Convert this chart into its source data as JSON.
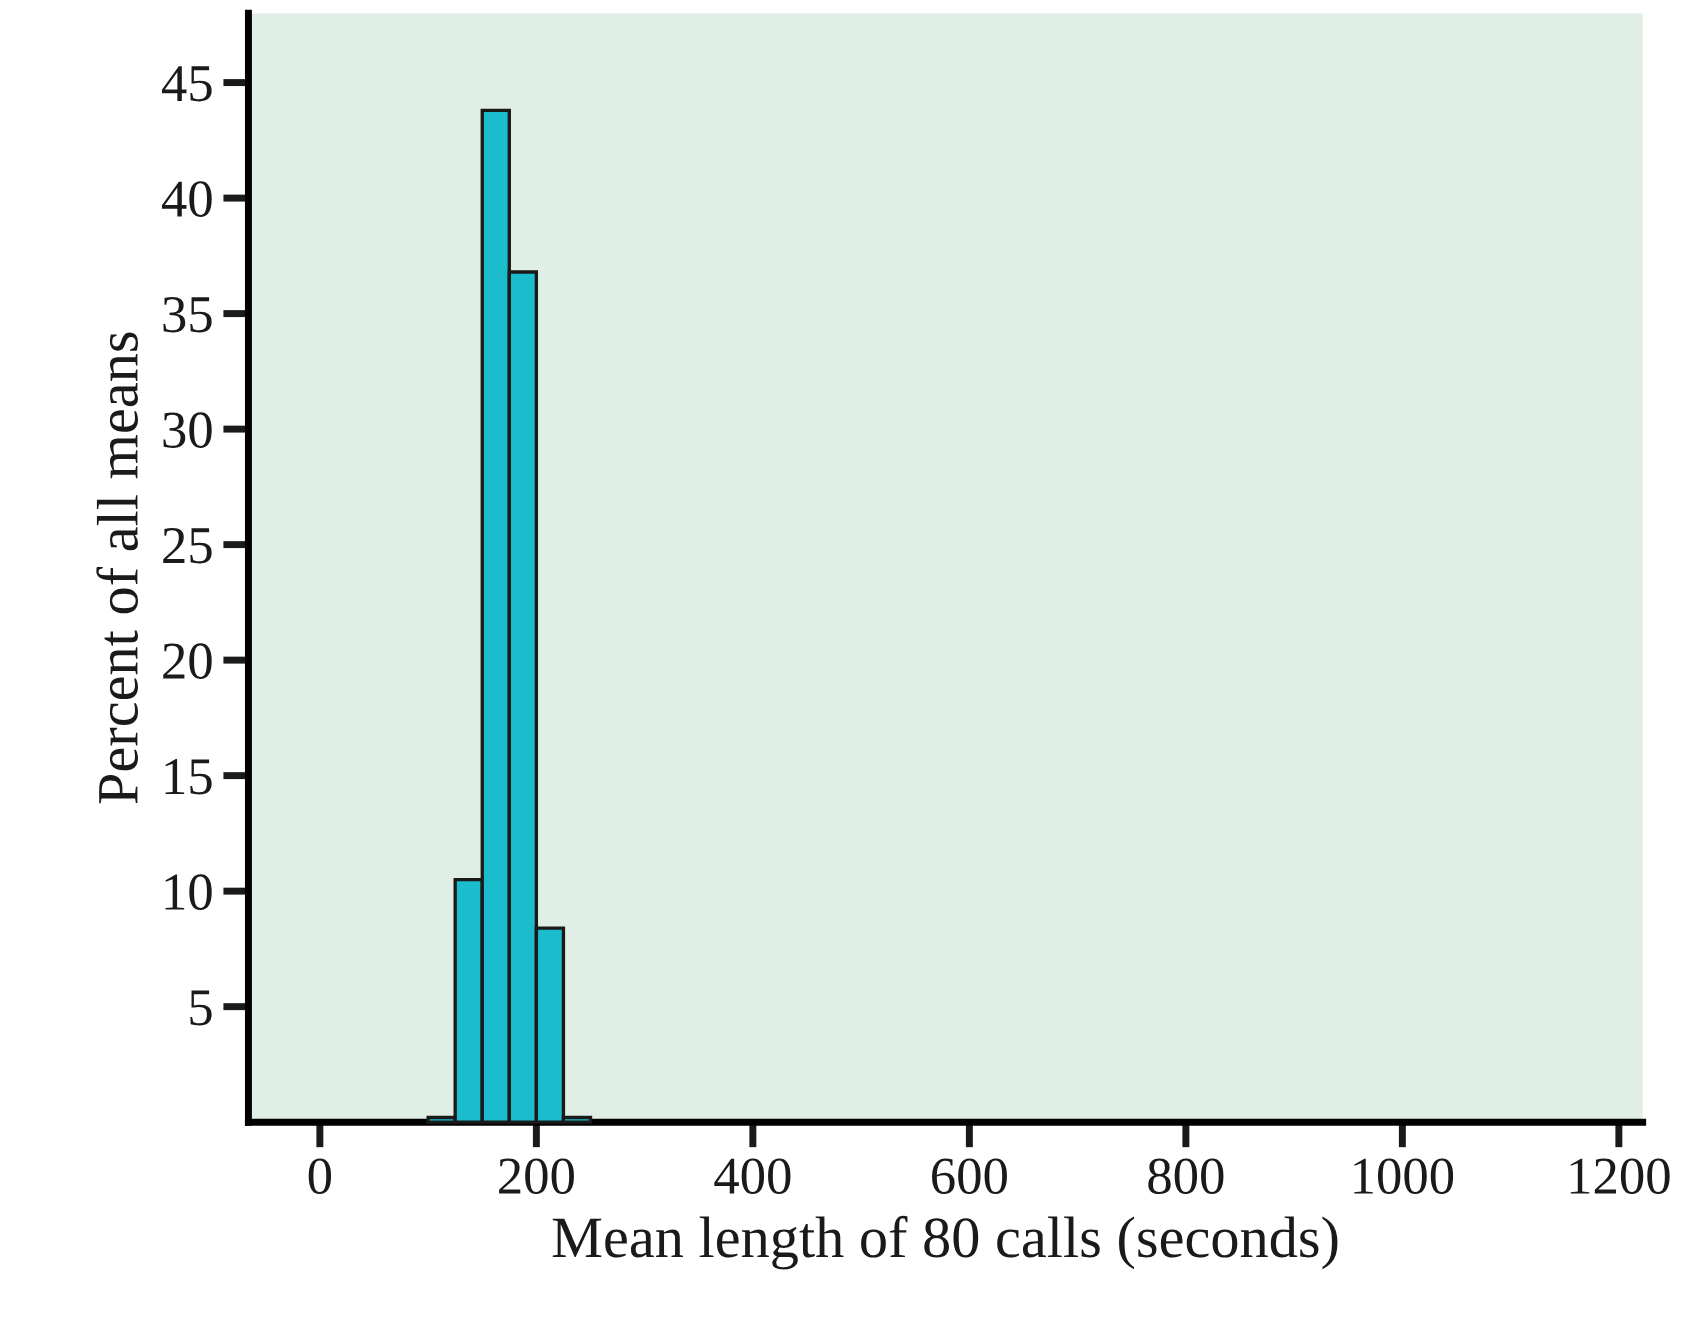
{
  "chart_data": {
    "type": "histogram",
    "xlabel": "Mean length of 80 calls (seconds)",
    "ylabel": "Percent of all means",
    "bins": [
      100,
      125,
      150,
      175,
      200,
      225,
      250
    ],
    "values": [
      0.2,
      10.5,
      43.8,
      36.8,
      8.4,
      0.2
    ],
    "color": "#1bbccc",
    "xlim": [
      -66,
      1222
    ],
    "xticks": [
      0,
      200,
      400,
      600,
      800,
      1000,
      1200
    ],
    "ylim": [
      0,
      48
    ],
    "yticks": [
      5,
      10,
      15,
      20,
      25,
      30,
      35,
      40,
      45
    ],
    "grid": false
  }
}
